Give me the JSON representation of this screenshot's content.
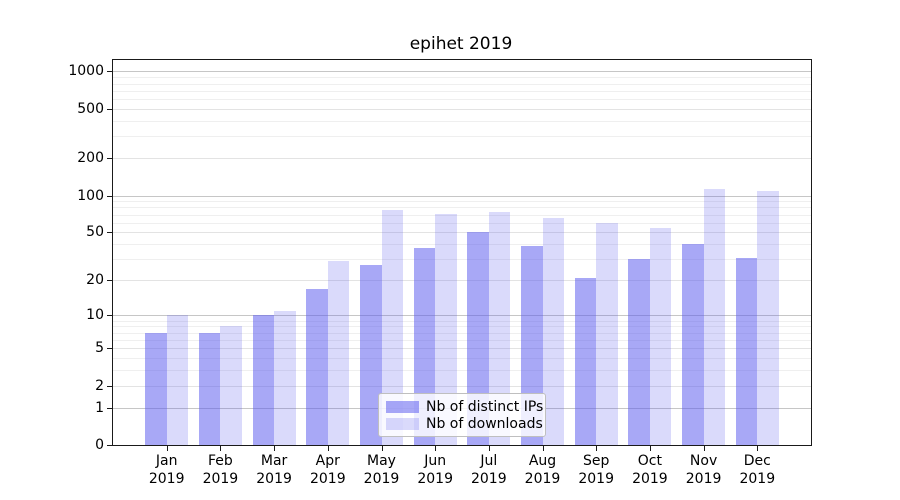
{
  "title": "epihet 2019",
  "colors": {
    "bar_distinct_ips": "rgba(88,88,238,0.52)",
    "bar_downloads": "rgba(88,88,238,0.22)",
    "grid_major": "#c6c6c6",
    "grid_mid": "#e3e3e3",
    "grid_minor": "#efefef",
    "axis": "#1a1a1a",
    "legend_border": "#bfbfbf"
  },
  "chart_data": {
    "type": "bar",
    "title": "epihet 2019",
    "x_categories": [
      "Jan",
      "Feb",
      "Mar",
      "Apr",
      "May",
      "Jun",
      "Jul",
      "Aug",
      "Sep",
      "Oct",
      "Nov",
      "Dec"
    ],
    "x_year": "2019",
    "series": [
      {
        "name": "Nb of distinct IPs",
        "color": "rgba(88,88,238,0.52)",
        "values": [
          7,
          7,
          10,
          17,
          27,
          37,
          50,
          39,
          21,
          30,
          40,
          31
        ]
      },
      {
        "name": "Nb of downloads",
        "color": "rgba(88,88,238,0.22)",
        "values": [
          10,
          8,
          11,
          29,
          76,
          71,
          74,
          66,
          60,
          54,
          112,
          109
        ]
      }
    ],
    "y_scale": "log10(1+value)",
    "y_tick_values": [
      0,
      1,
      2,
      5,
      10,
      20,
      50,
      100,
      200,
      500,
      1000
    ],
    "y_tick_labels": [
      "0",
      "1",
      "2",
      "5",
      "10",
      "20",
      "50",
      "100",
      "200",
      "500",
      "1000"
    ],
    "y_major_grid": [
      1,
      10,
      100,
      1000
    ],
    "y_mid_grid": [
      2,
      5,
      20,
      50,
      200,
      500
    ],
    "y_minor_grid": [
      3,
      4,
      6,
      7,
      8,
      9,
      30,
      40,
      60,
      70,
      80,
      90,
      300,
      400,
      600,
      700,
      800,
      900
    ],
    "ylim": [
      0,
      1190
    ],
    "grid": "horizontal",
    "legend_position": "lower center",
    "xlabel": "",
    "ylabel": ""
  }
}
